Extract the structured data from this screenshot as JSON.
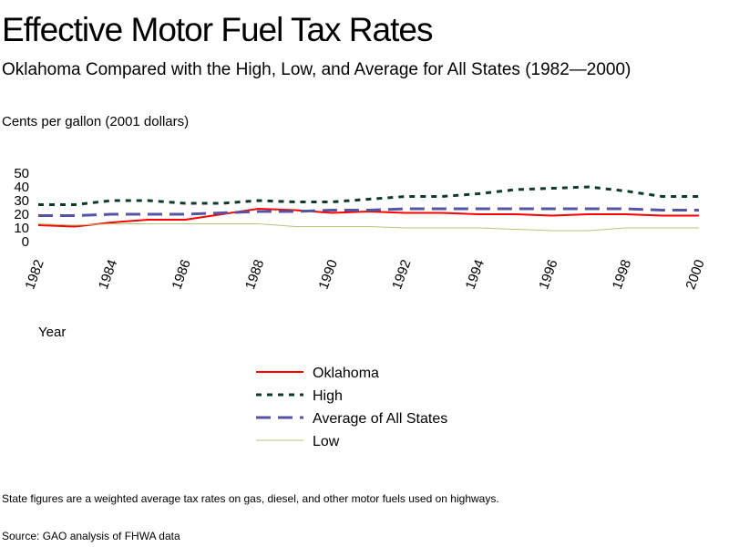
{
  "title": "Effective Motor Fuel Tax Rates",
  "subtitle": "Oklahoma Compared with the High, Low, and Average for All States (1982—2000)",
  "y_unit_label": "Cents  per  gallon    (2001 dollars)",
  "x_axis_label": "Year",
  "footnote": "State figures are a weighted average tax rates on gas, diesel, and other motor fuels used on highways.",
  "source": "Source: GAO analysis of FHWA data",
  "chart_data": {
    "type": "line",
    "title": "Effective Motor Fuel Tax Rates",
    "xlabel": "Year",
    "ylabel": "Cents per gallon (2001 dollars)",
    "x": [
      1982,
      1983,
      1984,
      1985,
      1986,
      1987,
      1988,
      1989,
      1990,
      1991,
      1992,
      1993,
      1994,
      1995,
      1996,
      1997,
      1998,
      1999,
      2000
    ],
    "x_tick_labels": [
      "1982",
      "1984",
      "1986",
      "1988",
      "1990",
      "1992",
      "1994",
      "1996",
      "1998",
      "2000"
    ],
    "y_ticks": [
      0,
      10,
      20,
      30,
      40,
      50
    ],
    "ylim": [
      0,
      50
    ],
    "xlim": [
      1982,
      2000
    ],
    "grid": false,
    "legend_position": "bottom-center",
    "series": [
      {
        "name": "Oklahoma",
        "color": "#ff0000",
        "style": "solid",
        "values": [
          12,
          11,
          14,
          16,
          16,
          20,
          24,
          23,
          21,
          22,
          21,
          21,
          20,
          20,
          19,
          20,
          20,
          19,
          19
        ]
      },
      {
        "name": "High",
        "color": "#0e3b25",
        "style": "dotted",
        "values": [
          27,
          27,
          30,
          30,
          28,
          28,
          30,
          29,
          29,
          31,
          33,
          33,
          35,
          38,
          39,
          40,
          37,
          33,
          33
        ]
      },
      {
        "name": "Average of All States",
        "color": "#5555a6",
        "style": "dashed",
        "values": [
          19,
          19,
          20,
          20,
          20,
          21,
          22,
          22,
          23,
          23,
          24,
          24,
          24,
          24,
          24,
          24,
          24,
          23,
          23
        ]
      },
      {
        "name": "Low",
        "color": "#b0c878",
        "style": "solid-thin",
        "values": [
          13,
          12,
          13,
          13,
          13,
          13,
          13,
          11,
          11,
          11,
          10,
          10,
          10,
          9,
          8,
          8,
          10,
          10,
          10
        ]
      }
    ]
  }
}
